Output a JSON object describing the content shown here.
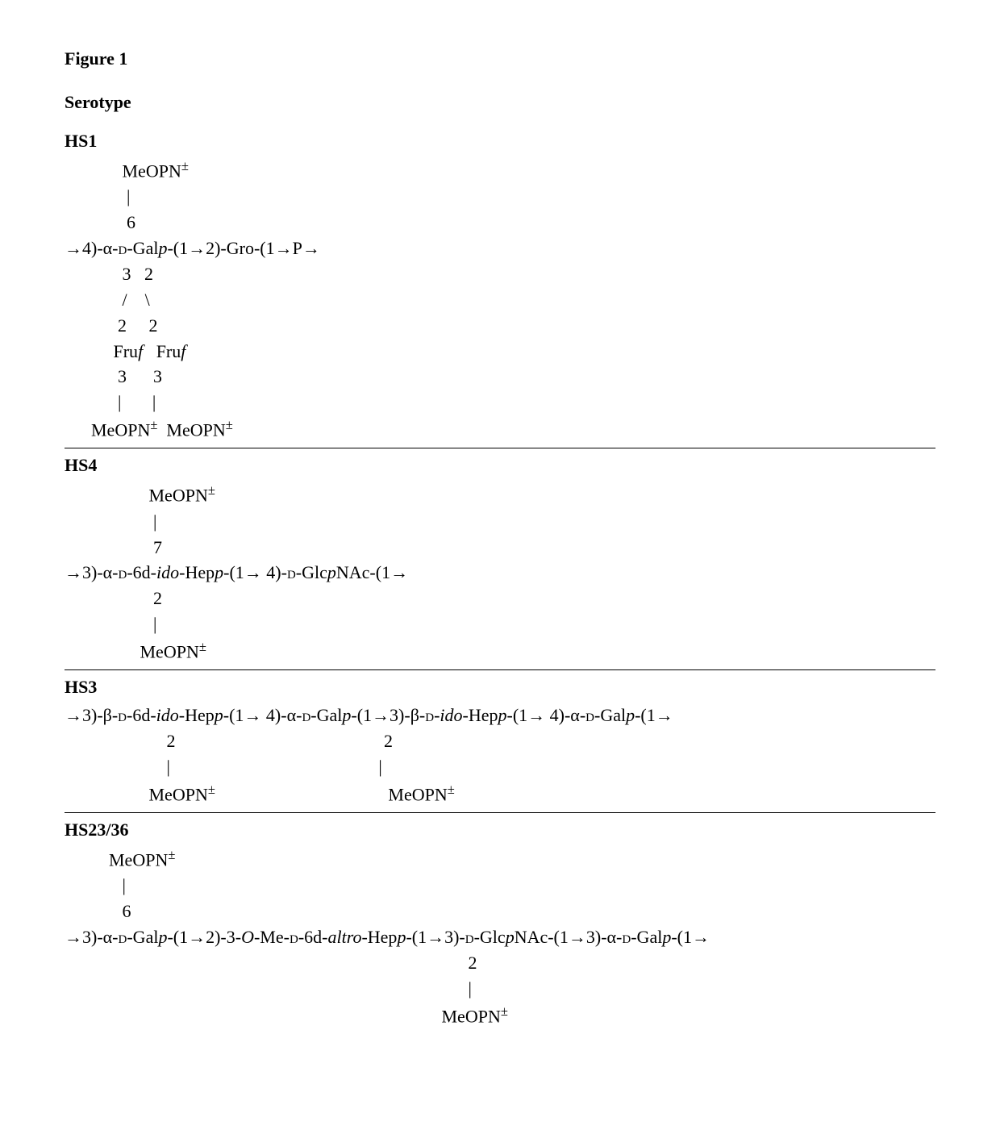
{
  "figure_title": "Figure 1",
  "section_heading": "Serotype",
  "serotypes": {
    "hs1": {
      "label": "HS1",
      "lines": [
        "             MeOPN[sup]±[/sup]",
        "              |",
        "              6",
        "→4)-α-[sc]d[/sc]-Gal[ital]p[/ital]-(1→2)-Gro-(1→P→",
        "             3   2",
        "             /    \\",
        "            2     2",
        "           Fru[ital]f[/ital]   Fru[ital]f[/ital]",
        "            3      3",
        "            |       |",
        "      MeOPN[sup]±[/sup]  MeOPN[sup]±[/sup]"
      ]
    },
    "hs4": {
      "label": "HS4",
      "lines": [
        "                   MeOPN[sup]±[/sup]",
        "                    |",
        "                    7",
        "→3)-α-[sc]d[/sc]-6d-[ital]ido[/ital]-Hep[ital]p[/ital]-(1→ 4)-[sc]d[/sc]-Glc[ital]p[/ital]NAc-(1→",
        "                    2",
        "                    |",
        "                 MeOPN[sup]±[/sup]"
      ]
    },
    "hs3": {
      "label": "HS3",
      "lines": [
        "→3)-β-[sc]d[/sc]-6d-[ital]ido[/ital]-Hep[ital]p[/ital]-(1→ 4)-α-[sc]d[/sc]-Gal[ital]p[/ital]-(1→3)-β-[sc]d[/sc]-[ital]ido[/ital]-Hep[ital]p[/ital]-(1→ 4)-α-[sc]d[/sc]-Gal[ital]p[/ital]-(1→",
        "                       2                                               2",
        "                       |                                               |",
        "                   MeOPN[sup]±[/sup]                                       MeOPN[sup]±[/sup]"
      ]
    },
    "hs2336": {
      "label": "HS23/36",
      "lines": [
        "          MeOPN[sup]±[/sup]",
        "             |",
        "             6",
        "→3)-α-[sc]d[/sc]-Gal[ital]p[/ital]-(1→2)-3-[ital]O[/ital]-Me-[sc]d[/sc]-6d-[ital]altro[/ital]-Hep[ital]p[/ital]-(1→3)-[sc]d[/sc]-Glc[ital]p[/ital]NAc-(1→3)-α-[sc]d[/sc]-Gal[ital]p[/ital]-(1→",
        "                                                                                           2",
        "                                                                                           |",
        "                                                                                     MeOPN[sup]±[/sup]"
      ]
    }
  }
}
